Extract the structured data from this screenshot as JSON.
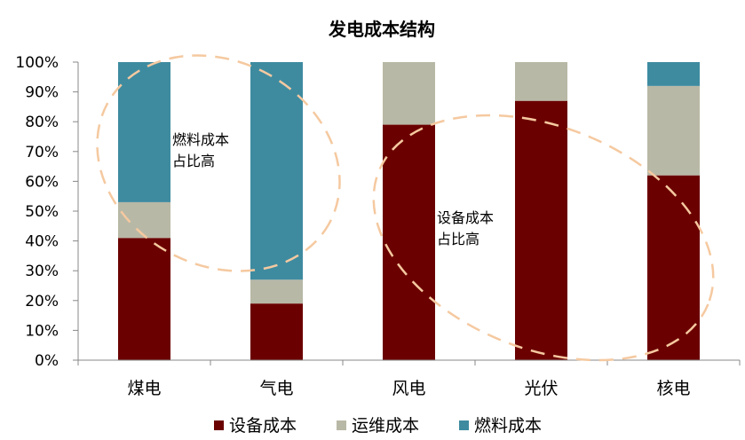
{
  "chart_data": {
    "type": "bar",
    "stacked": true,
    "title": "发电成本结构",
    "categories": [
      "煤电",
      "气电",
      "风电",
      "光伏",
      "核电"
    ],
    "series": [
      {
        "name": "设备成本",
        "color": "#6B0000",
        "values": [
          41,
          19,
          79,
          87,
          62
        ]
      },
      {
        "name": "运维成本",
        "color": "#B8B8A6",
        "values": [
          12,
          8,
          21,
          13,
          30
        ]
      },
      {
        "name": "燃料成本",
        "color": "#3E8BA0",
        "values": [
          47,
          73,
          0,
          0,
          8
        ]
      }
    ],
    "ylim": [
      0,
      100
    ],
    "yticks": [
      "0%",
      "10%",
      "20%",
      "30%",
      "40%",
      "50%",
      "60%",
      "70%",
      "80%",
      "90%",
      "100%"
    ],
    "legend_position": "bottom",
    "annotations": [
      {
        "lines": [
          "燃料成本",
          "占比高"
        ]
      },
      {
        "lines": [
          "设备成本",
          "占比高"
        ]
      }
    ],
    "annotation_color": "#F5C9A0"
  }
}
